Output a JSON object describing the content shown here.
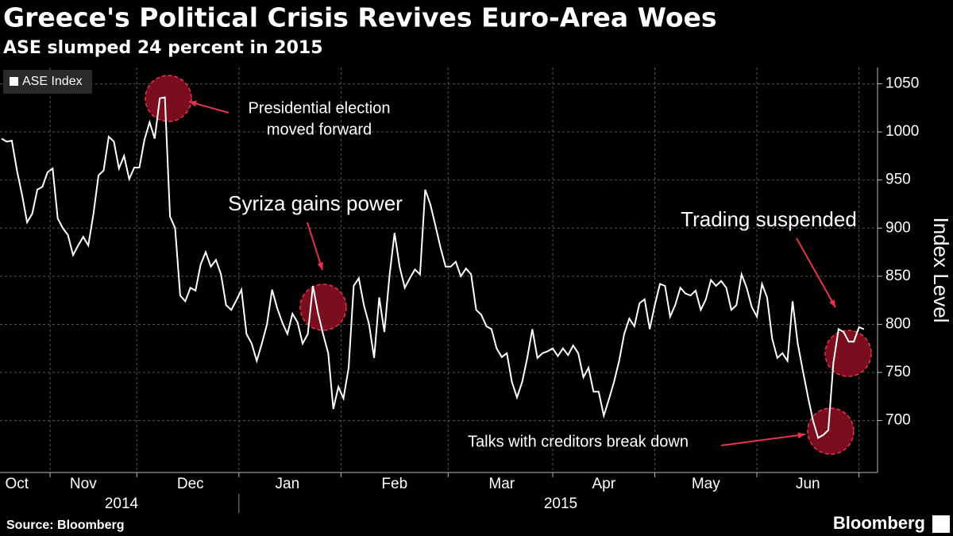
{
  "chart_data": {
    "type": "line",
    "title": "Greece's Political Crisis Revives Euro-Area Woes",
    "subtitle": "ASE slumped 24 percent in 2015",
    "y_label": "Index Level",
    "source": "Source: Bloomberg",
    "brand": "Bloomberg",
    "year_labels": [
      "2014",
      "2015"
    ],
    "categories": [
      null,
      null,
      null,
      "Oct",
      null,
      null,
      null,
      null,
      null,
      null,
      null,
      null,
      null,
      null,
      null,
      null,
      "Nov",
      null,
      null,
      null,
      null,
      null,
      null,
      null,
      null,
      null,
      null,
      null,
      null,
      null,
      null,
      null,
      null,
      null,
      null,
      null,
      null,
      "Dec",
      null,
      null,
      null,
      null,
      null,
      null,
      null,
      null,
      null,
      null,
      null,
      null,
      null,
      null,
      null,
      null,
      null,
      null,
      "Jan",
      null,
      null,
      null,
      null,
      null,
      null,
      null,
      null,
      null,
      null,
      null,
      null,
      null,
      null,
      null,
      null,
      null,
      null,
      null,
      null,
      "Feb",
      null,
      null,
      null,
      null,
      null,
      null,
      null,
      null,
      null,
      null,
      null,
      null,
      null,
      null,
      null,
      null,
      null,
      null,
      null,
      null,
      "Mar",
      null,
      null,
      null,
      null,
      null,
      null,
      null,
      null,
      null,
      null,
      null,
      null,
      null,
      null,
      null,
      null,
      null,
      null,
      null,
      "Apr",
      null,
      null,
      null,
      null,
      null,
      null,
      null,
      null,
      null,
      null,
      null,
      null,
      null,
      null,
      null,
      null,
      null,
      null,
      null,
      "May",
      null,
      null,
      null,
      null,
      null,
      null,
      null,
      null,
      null,
      null,
      null,
      null,
      null,
      null,
      null,
      null,
      null,
      null,
      null,
      "Jun",
      null,
      null,
      null,
      null,
      null,
      null,
      null,
      null,
      null,
      null,
      null
    ],
    "series": [
      {
        "name": "ASE Index",
        "color": "#ffffff",
        "values": [
          993,
          990,
          991,
          960,
          935,
          906,
          915,
          940,
          943,
          958,
          962,
          910,
          900,
          893,
          872,
          882,
          891,
          882,
          915,
          955,
          960,
          995,
          990,
          962,
          975,
          951,
          963,
          963,
          992,
          1010,
          993,
          1035,
          1036,
          912,
          900,
          830,
          824,
          838,
          835,
          862,
          875,
          860,
          867,
          852,
          820,
          815,
          825,
          836,
          790,
          780,
          762,
          780,
          800,
          836,
          817,
          802,
          790,
          811,
          802,
          780,
          790,
          840,
          812,
          790,
          770,
          712,
          735,
          723,
          755,
          840,
          848,
          820,
          800,
          765,
          828,
          792,
          850,
          895,
          860,
          838,
          848,
          857,
          852,
          940,
          925,
          903,
          880,
          860,
          860,
          865,
          850,
          858,
          852,
          815,
          810,
          798,
          795,
          775,
          766,
          770,
          740,
          724,
          740,
          765,
          795,
          765,
          770,
          772,
          775,
          767,
          775,
          768,
          778,
          770,
          745,
          755,
          730,
          730,
          705,
          722,
          740,
          762,
          790,
          806,
          798,
          822,
          826,
          795,
          820,
          842,
          840,
          808,
          820,
          838,
          832,
          830,
          835,
          815,
          826,
          846,
          840,
          845,
          838,
          815,
          820,
          852,
          838,
          818,
          808,
          842,
          828,
          785,
          765,
          770,
          762,
          824,
          780,
          752,
          725,
          700,
          682,
          685,
          690,
          760,
          795,
          792,
          782,
          782,
          797,
          795
        ]
      }
    ],
    "ylim": [
      646,
      1067
    ],
    "yticks": [
      700,
      750,
      800,
      850,
      900,
      950,
      1000,
      1050
    ],
    "grid": true,
    "legend": "top-left",
    "annotations": [
      {
        "lines": [
          "Presidential election",
          "moved forward"
        ]
      },
      {
        "lines": [
          "Syriza gains power"
        ]
      },
      {
        "lines": [
          "Trading suspended"
        ]
      },
      {
        "lines": [
          "Talks with creditors break down"
        ]
      }
    ]
  }
}
